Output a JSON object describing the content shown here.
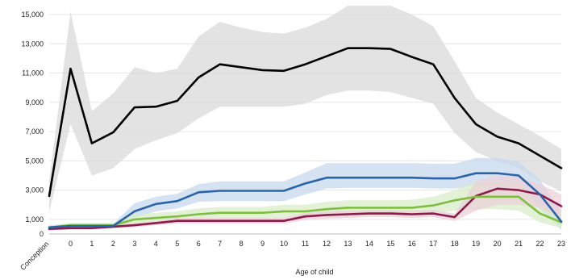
{
  "chart_data": {
    "type": "line",
    "title": "",
    "xlabel": "Age of child",
    "ylabel": "",
    "ylim": [
      0,
      15000
    ],
    "yticks": [
      0,
      1000,
      3000,
      5000,
      7000,
      9000,
      11000,
      13000,
      15000
    ],
    "ytick_labels": [
      "0",
      "1,000",
      "3,000",
      "5,000",
      "7,000",
      "9,000",
      "11,000",
      "13,000",
      "15,000"
    ],
    "categories": [
      "Conception",
      "0",
      "1",
      "2",
      "3",
      "4",
      "5",
      "6",
      "7",
      "8",
      "9",
      "10",
      "11",
      "12",
      "13",
      "14",
      "15",
      "16",
      "17",
      "18",
      "19",
      "20",
      "21",
      "22",
      "23"
    ],
    "grid": true,
    "legend": "none",
    "series": [
      {
        "color": "#000000",
        "band_color": "#d9d9d9",
        "values": [
          2600,
          11300,
          6200,
          6950,
          8650,
          8700,
          9100,
          10700,
          11600,
          11400,
          11200,
          11150,
          11600,
          12150,
          12700,
          12700,
          12650,
          12100,
          11600,
          9300,
          7500,
          6650,
          6200,
          5350,
          4500
        ],
        "lower": [
          1500,
          7500,
          4000,
          4500,
          5800,
          6400,
          6900,
          7900,
          8700,
          8700,
          8700,
          8700,
          8900,
          9500,
          9800,
          9800,
          9700,
          9300,
          8900,
          6900,
          5600,
          5000,
          4500,
          3600,
          2900
        ],
        "upper": [
          3600,
          15200,
          8400,
          9600,
          11400,
          11000,
          11300,
          13500,
          14500,
          14100,
          13800,
          13700,
          14100,
          14700,
          15600,
          15600,
          15600,
          15000,
          14200,
          11800,
          9300,
          8300,
          7500,
          6700,
          5800
        ]
      },
      {
        "color": "#2a64a8",
        "band_color": "#c6d8ee",
        "values": [
          450,
          550,
          550,
          550,
          1550,
          2050,
          2250,
          2850,
          2950,
          2950,
          2950,
          2950,
          3450,
          3850,
          3850,
          3850,
          3850,
          3850,
          3800,
          3800,
          4150,
          4150,
          4000,
          2700,
          850
        ],
        "lower": [
          350,
          450,
          450,
          450,
          1100,
          1550,
          1750,
          2200,
          2250,
          2250,
          2250,
          2250,
          2700,
          3100,
          3150,
          3150,
          3150,
          3150,
          3100,
          3100,
          3300,
          3300,
          3200,
          1700,
          300
        ],
        "upper": [
          600,
          700,
          700,
          700,
          2100,
          2550,
          2750,
          3400,
          3600,
          3600,
          3600,
          3600,
          4200,
          4850,
          4850,
          4850,
          4850,
          4850,
          4800,
          4800,
          5200,
          5200,
          4950,
          3700,
          1500
        ]
      },
      {
        "color": "#7fbf3f",
        "band_color": "#d9ecc8",
        "values": [
          450,
          600,
          600,
          600,
          1000,
          1100,
          1200,
          1350,
          1450,
          1450,
          1450,
          1550,
          1550,
          1700,
          1800,
          1800,
          1800,
          1800,
          1950,
          2300,
          2550,
          2550,
          2550,
          1400,
          800
        ],
        "lower": [
          350,
          450,
          450,
          450,
          700,
          800,
          850,
          950,
          1050,
          1050,
          1050,
          1100,
          1100,
          1250,
          1300,
          1300,
          1300,
          1300,
          1400,
          1600,
          1700,
          1700,
          1600,
          800,
          400
        ],
        "upper": [
          550,
          750,
          750,
          750,
          1350,
          1450,
          1550,
          1750,
          1850,
          1850,
          1850,
          2000,
          2000,
          2200,
          2300,
          2300,
          2300,
          2350,
          2550,
          3000,
          3600,
          3600,
          3600,
          2100,
          1300
        ]
      },
      {
        "color": "#8b1c4a",
        "band_color": "#ecd0da",
        "values": [
          350,
          400,
          400,
          500,
          600,
          750,
          900,
          900,
          900,
          900,
          900,
          900,
          1200,
          1300,
          1350,
          1400,
          1400,
          1350,
          1400,
          1150,
          2600,
          3100,
          3000,
          2700,
          1900
        ],
        "lower": [
          250,
          300,
          300,
          400,
          450,
          600,
          700,
          700,
          700,
          700,
          700,
          700,
          950,
          1050,
          1100,
          1150,
          1150,
          1100,
          1150,
          900,
          1600,
          2000,
          2000,
          1800,
          1100
        ],
        "upper": [
          450,
          500,
          500,
          600,
          750,
          900,
          1100,
          1100,
          1100,
          1100,
          1100,
          1100,
          1450,
          1550,
          1600,
          1650,
          1650,
          1600,
          1650,
          1400,
          3600,
          4000,
          3900,
          3400,
          2700
        ]
      }
    ]
  }
}
